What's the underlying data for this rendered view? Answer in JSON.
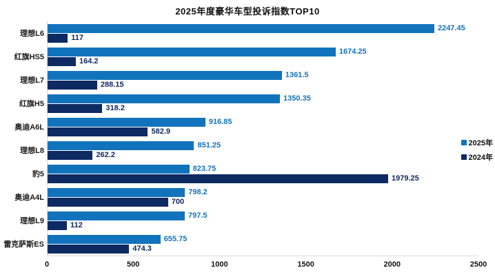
{
  "header": {
    "title": "2025年度豪华车型投诉指数TOP10"
  },
  "legend": {
    "position": "right",
    "items": [
      {
        "label": "2025年",
        "color": "#1273BD"
      },
      {
        "label": "2024年",
        "color": "#0E2A63"
      }
    ]
  },
  "chart_data": {
    "type": "bar",
    "orientation": "horizontal",
    "title": "2025年度豪华车型投诉指数TOP10",
    "categories": [
      "理想L6",
      "红旗HS5",
      "理想L7",
      "红旗H5",
      "奥迪A6L",
      "理想L8",
      "豹5",
      "奥迪A4L",
      "理想L9",
      "雷克萨斯ES"
    ],
    "series": [
      {
        "name": "2025年",
        "color": "#1273BD",
        "values": [
          2247.45,
          1674.25,
          1361.5,
          1350.35,
          916.85,
          851.25,
          823.75,
          798.2,
          797.5,
          655.75
        ]
      },
      {
        "name": "2024年",
        "color": "#0E2A63",
        "values": [
          117,
          164.2,
          288.15,
          318.2,
          582.9,
          262.2,
          1979.25,
          700,
          112,
          474.3
        ]
      }
    ],
    "xlabel": "",
    "ylabel": "",
    "xlim": [
      0,
      2500
    ],
    "x_ticks": [
      0,
      500,
      1000,
      1500,
      2000,
      2500
    ],
    "grid": false,
    "legend_position": "right",
    "value_labels": true,
    "axis_line_color": "#d9d9d9"
  }
}
